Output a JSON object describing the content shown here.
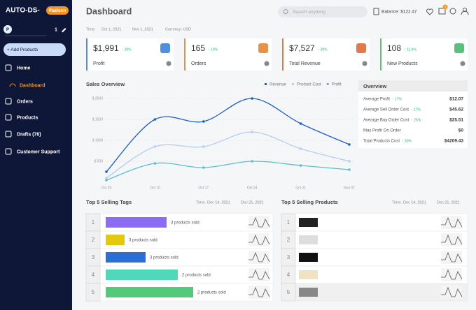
{
  "sidebar": {
    "logo": "AUTO-DS-",
    "badge": "Platform",
    "avatar": "P",
    "count": "1",
    "add_button": "+ Add Products",
    "nav": [
      "Home",
      "Dashboard",
      "Orders",
      "Products",
      "Drafts (76)",
      "Customer Support"
    ]
  },
  "header": {
    "title": "Dashboard",
    "search": "Search anything",
    "balance": "Balance: $122.47",
    "notifications": "1"
  },
  "filters": {
    "time": "Time:",
    "start": "Oct 1, 2021",
    "end": "Nov 1, 2021",
    "currency": "Currency: USD"
  },
  "kpis": [
    {
      "value": "$1,991",
      "change": "↑ 20%",
      "label": "Profit",
      "color": "#4f8fe0"
    },
    {
      "value": "165",
      "change": "↑ 10%",
      "label": "Orders",
      "color": "#e8914a"
    },
    {
      "value": "$7,527",
      "change": "↑ 30%",
      "label": "Total Revenue",
      "color": "#e07a4a"
    },
    {
      "value": "108",
      "change": "↑ 11.6%",
      "label": "New Products",
      "color": "#5cbf7a"
    }
  ],
  "chart_data": {
    "type": "line",
    "title": "Sales Overview",
    "categories": [
      "Oct 03",
      "Oct 10",
      "Oct 17",
      "Oct 24",
      "Oct 31",
      "Nov 07"
    ],
    "series": [
      {
        "name": "Revenue",
        "color": "#1f5fbf",
        "values": [
          250,
          1500,
          1450,
          2000,
          1400,
          900
        ]
      },
      {
        "name": "Product Cost",
        "color": "#b5cdf0",
        "values": [
          100,
          850,
          850,
          1200,
          800,
          500
        ]
      },
      {
        "name": "Profit",
        "color": "#5bbfc9",
        "values": [
          50,
          450,
          350,
          500,
          400,
          300
        ]
      }
    ],
    "ylim": [
      0,
      2100
    ],
    "yticks": [
      {
        "value": 500,
        "label": "$ 500"
      },
      {
        "value": 1000,
        "label": "$ 1000"
      },
      {
        "value": 1500,
        "label": "$ 1500"
      },
      {
        "value": 2000,
        "label": "$ 2000"
      }
    ],
    "grid": true
  },
  "overview": {
    "title": "Overview",
    "rows": [
      {
        "label": "Average Profit",
        "change": "↑ 17%",
        "value": "$12.07"
      },
      {
        "label": "Average Sell Order Cost",
        "change": "↑ 17%",
        "value": "$45.62"
      },
      {
        "label": "Average Buy Order Cost",
        "change": "↑ 25%",
        "value": "$25.51"
      },
      {
        "label": "Max Profit On Order",
        "value": "$0"
      },
      {
        "label": "Total Products Cost",
        "change": "↑ 30%",
        "value": "$4209.43"
      }
    ]
  },
  "tags": {
    "title": "Top 5 Selling Tags",
    "time": "Time:",
    "start": "Dec 14, 2021",
    "end": "Dec 21, 2021",
    "rows": [
      {
        "rank": "1",
        "sold": "3 products sold",
        "color": "#8d6cf5"
      },
      {
        "rank": "2",
        "sold": "3 products sold",
        "color": "#e3c80c"
      },
      {
        "rank": "3",
        "sold": "3 products sold",
        "color": "#2a6fd6"
      },
      {
        "rank": "4",
        "sold": "2 products sold",
        "color": "#4fd9b8"
      },
      {
        "rank": "5",
        "sold": "2 products sold",
        "color": "#55c97a"
      }
    ]
  },
  "products": {
    "title": "Top 5 Selling Products",
    "time": "Time:",
    "start": "Dec 14, 2021",
    "end": "Dec 21, 2021",
    "rows": [
      {
        "rank": "1"
      },
      {
        "rank": "2"
      },
      {
        "rank": "3"
      },
      {
        "rank": "4"
      },
      {
        "rank": "5"
      }
    ]
  }
}
